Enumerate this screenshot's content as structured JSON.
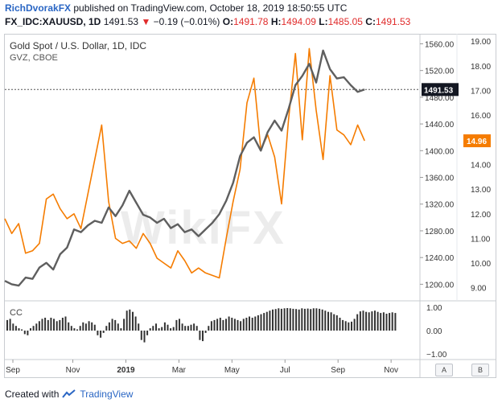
{
  "header": {
    "author": "RichDvorakFX",
    "published_text": "published on TradingView.com, October 18, 2019 18:50:55 UTC"
  },
  "symbol_bar": {
    "symbol": "FX_IDC:XAUUSD, 1D",
    "last": "1491.53",
    "change": "−0.19 (−0.01%)",
    "change_arrow": "▼",
    "open_label": "O:",
    "open": "1491.78",
    "high_label": "H:",
    "high": "1494.09",
    "low_label": "L:",
    "low": "1485.05",
    "close_label": "C:",
    "close": "1491.53"
  },
  "legend": {
    "series1": "Gold Spot / U.S. Dollar, 1D, IDC",
    "series2": "GVZ, CBOE",
    "cc": "CC"
  },
  "watermark": "WikiFX",
  "footer": {
    "created_with": "Created with",
    "brand": "TradingView"
  },
  "buttons": {
    "a": "A",
    "b": "B"
  },
  "colors": {
    "gold": "#5f5f5f",
    "gvz": "#f57c00",
    "gold_badge": "#131722",
    "gvz_badge": "#f57c00",
    "cc_bars": "#333333"
  },
  "chart_data": [
    {
      "type": "line",
      "title": "Gold Spot / U.S. Dollar, 1D, IDC",
      "x_tick_labels": [
        "Sep",
        "Nov",
        "2019",
        "Mar",
        "May",
        "Jul",
        "Sep",
        "Nov"
      ],
      "series": [
        {
          "name": "Gold Spot / U.S. Dollar (XAUUSD)",
          "axis": "left-scale (right side)",
          "points": [
            [
              0,
              1205
            ],
            [
              3,
              1200
            ],
            [
              6,
              1198
            ],
            [
              9,
              1210
            ],
            [
              12,
              1208
            ],
            [
              15,
              1225
            ],
            [
              18,
              1232
            ],
            [
              21,
              1222
            ],
            [
              24,
              1245
            ],
            [
              27,
              1255
            ],
            [
              30,
              1282
            ],
            [
              33,
              1278
            ],
            [
              36,
              1288
            ],
            [
              39,
              1295
            ],
            [
              42,
              1292
            ],
            [
              45,
              1315
            ],
            [
              48,
              1302
            ],
            [
              51,
              1318
            ],
            [
              54,
              1340
            ],
            [
              57,
              1322
            ],
            [
              60,
              1304
            ],
            [
              63,
              1300
            ],
            [
              66,
              1292
            ],
            [
              69,
              1298
            ],
            [
              72,
              1284
            ],
            [
              75,
              1290
            ],
            [
              78,
              1278
            ],
            [
              81,
              1282
            ],
            [
              84,
              1272
            ],
            [
              87,
              1282
            ],
            [
              90,
              1292
            ],
            [
              93,
              1305
            ],
            [
              96,
              1325
            ],
            [
              99,
              1352
            ],
            [
              102,
              1392
            ],
            [
              105,
              1412
            ],
            [
              108,
              1420
            ],
            [
              111,
              1400
            ],
            [
              114,
              1428
            ],
            [
              117,
              1445
            ],
            [
              120,
              1430
            ],
            [
              123,
              1462
            ],
            [
              126,
              1498
            ],
            [
              129,
              1512
            ],
            [
              132,
              1530
            ],
            [
              135,
              1502
            ],
            [
              138,
              1550
            ],
            [
              141,
              1522
            ],
            [
              144,
              1508
            ],
            [
              147,
              1510
            ],
            [
              150,
              1498
            ],
            [
              153,
              1488
            ],
            [
              156,
              1491.53
            ]
          ],
          "last_value": "1491.53",
          "y_ticks": [
            1200,
            1240,
            1280,
            1320,
            1360,
            1400,
            1440,
            1480,
            1520,
            1560
          ],
          "y_tick_labels": [
            "1200.00",
            "1240.00",
            "1280.00",
            "1320.00",
            "1360.00",
            "1400.00",
            "1440.00",
            "1480.00",
            "1520.00",
            "1560.00"
          ],
          "ylim": [
            1180,
            1575
          ]
        },
        {
          "name": "GVZ, CBOE",
          "axis": "right-scale",
          "points": [
            [
              0,
              11.8
            ],
            [
              3,
              11.2
            ],
            [
              6,
              11.6
            ],
            [
              9,
              10.4
            ],
            [
              12,
              10.5
            ],
            [
              15,
              10.8
            ],
            [
              18,
              12.6
            ],
            [
              21,
              12.8
            ],
            [
              24,
              12.2
            ],
            [
              27,
              11.8
            ],
            [
              30,
              12.0
            ],
            [
              33,
              11.4
            ],
            [
              36,
              12.8
            ],
            [
              39,
              14.2
            ],
            [
              42,
              15.6
            ],
            [
              45,
              12.5
            ],
            [
              48,
              11.0
            ],
            [
              51,
              10.8
            ],
            [
              54,
              10.9
            ],
            [
              57,
              10.6
            ],
            [
              60,
              11.2
            ],
            [
              63,
              10.8
            ],
            [
              66,
              10.2
            ],
            [
              69,
              10.0
            ],
            [
              72,
              9.8
            ],
            [
              75,
              10.5
            ],
            [
              78,
              10.1
            ],
            [
              81,
              9.6
            ],
            [
              84,
              9.8
            ],
            [
              87,
              9.6
            ],
            [
              90,
              9.5
            ],
            [
              93,
              9.4
            ],
            [
              96,
              11.0
            ],
            [
              99,
              12.5
            ],
            [
              102,
              13.8
            ],
            [
              105,
              16.5
            ],
            [
              108,
              17.5
            ],
            [
              111,
              14.6
            ],
            [
              114,
              15.2
            ],
            [
              117,
              14.3
            ],
            [
              120,
              12.4
            ],
            [
              123,
              15.8
            ],
            [
              126,
              18.5
            ],
            [
              129,
              15.0
            ],
            [
              132,
              18.7
            ],
            [
              135,
              16.2
            ],
            [
              138,
              14.2
            ],
            [
              141,
              17.6
            ],
            [
              144,
              15.4
            ],
            [
              147,
              15.2
            ],
            [
              150,
              14.8
            ],
            [
              153,
              15.6
            ],
            [
              156,
              14.96
            ]
          ],
          "last_value": "14.96",
          "y_ticks": [
            9,
            10,
            11,
            12,
            13,
            14,
            15,
            16,
            17,
            18,
            19
          ],
          "y_tick_labels": [
            "9.00",
            "10.00",
            "11.00",
            "12.00",
            "13.00",
            "14.00",
            "15.00",
            "16.00",
            "17.00",
            "18.00",
            "19.00"
          ],
          "ylim": [
            8.6,
            19.3
          ]
        }
      ],
      "xlabel": "",
      "ylabel": ""
    },
    {
      "type": "bar",
      "title": "CC",
      "y_ticks": [
        -1,
        0,
        1
      ],
      "y_tick_labels": [
        "−1.00",
        "0.00",
        "1.00"
      ],
      "ylim": [
        -1.2,
        1.2
      ],
      "values": [
        0.45,
        0.5,
        0.3,
        0.2,
        0.1,
        0.05,
        -0.15,
        -0.2,
        0.1,
        0.2,
        0.3,
        0.4,
        0.5,
        0.55,
        0.45,
        0.55,
        0.5,
        0.4,
        0.45,
        0.55,
        0.6,
        0.35,
        0.2,
        0.1,
        0.05,
        0.2,
        0.35,
        0.3,
        0.4,
        0.35,
        0.25,
        -0.2,
        -0.3,
        -0.1,
        0.2,
        0.35,
        0.5,
        0.45,
        0.3,
        0.1,
        0.5,
        0.85,
        0.9,
        0.8,
        0.6,
        0.3,
        -0.4,
        -0.5,
        -0.2,
        0.1,
        0.2,
        0.3,
        0.1,
        0.15,
        0.35,
        0.25,
        0.1,
        0.15,
        0.45,
        0.5,
        0.3,
        0.2,
        0.2,
        0.25,
        0.3,
        0.2,
        -0.4,
        -0.45,
        -0.1,
        0.2,
        0.4,
        0.45,
        0.5,
        0.55,
        0.45,
        0.5,
        0.6,
        0.55,
        0.5,
        0.45,
        0.4,
        0.5,
        0.55,
        0.6,
        0.55,
        0.6,
        0.65,
        0.7,
        0.75,
        0.8,
        0.85,
        0.9,
        0.92,
        0.95,
        0.93,
        0.95,
        0.96,
        0.95,
        0.93,
        0.92,
        0.9,
        0.95,
        0.93,
        0.94,
        0.92,
        0.95,
        0.95,
        0.93,
        0.9,
        0.85,
        0.8,
        0.78,
        0.7,
        0.65,
        0.55,
        0.45,
        0.4,
        0.35,
        0.38,
        0.5,
        0.7,
        0.82,
        0.85,
        0.8,
        0.78,
        0.82,
        0.85,
        0.8,
        0.75,
        0.78,
        0.72,
        0.75,
        0.78,
        0.75
      ]
    }
  ]
}
